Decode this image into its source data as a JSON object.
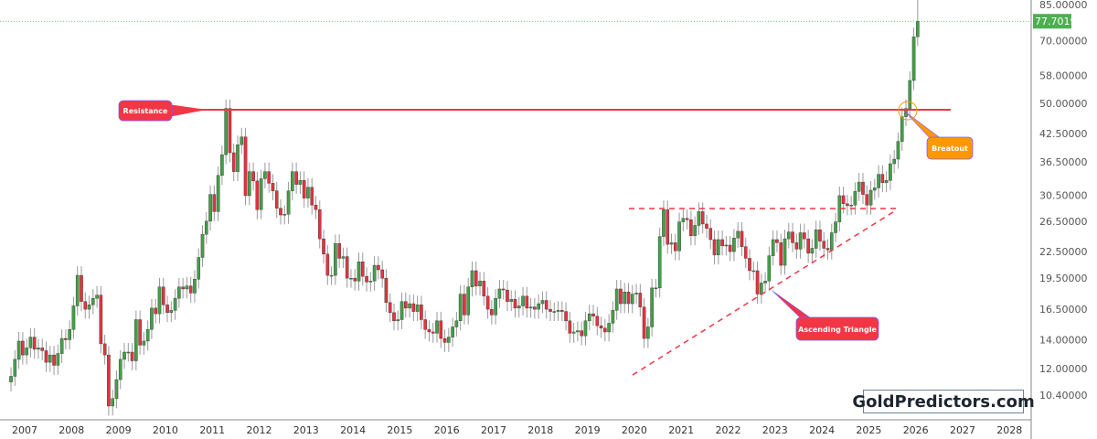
{
  "chart_data": {
    "type": "candlestick",
    "title": "",
    "xlabel": "",
    "ylabel": "",
    "y_scale": "log",
    "ylim": [
      9.5,
      88
    ],
    "grid": false,
    "y_ticks": [
      "85.00000",
      "70.00000",
      "58.00000",
      "50.00000",
      "42.50000",
      "36.50000",
      "30.50000",
      "26.50000",
      "22.50000",
      "19.50000",
      "16.50000",
      "14.00000",
      "12.00000",
      "10.40000"
    ],
    "x_ticks": [
      "2007",
      "2008",
      "2009",
      "2010",
      "2011",
      "2012",
      "2013",
      "2014",
      "2015",
      "2016",
      "2017",
      "2018",
      "2019",
      "2020",
      "2021",
      "2022",
      "2023",
      "2024",
      "2025",
      "2026",
      "2027",
      "2028"
    ],
    "last_price": "77.70190",
    "last_price_value": 77.7019,
    "start": "2006-09",
    "interval": "monthly",
    "closes": [
      11.5,
      12.6,
      13.9,
      12.9,
      13.4,
      14.2,
      13.3,
      13.4,
      13.2,
      12.4,
      12.9,
      12.2,
      13.0,
      14.1,
      14.0,
      14.8,
      16.8,
      19.8,
      17.2,
      16.5,
      16.9,
      17.5,
      17.8,
      13.7,
      12.9,
      9.8,
      10.2,
      11.3,
      12.6,
      13.1,
      13.1,
      12.5,
      15.6,
      13.6,
      13.9,
      14.8,
      16.6,
      16.1,
      18.6,
      16.9,
      16.2,
      16.4,
      17.5,
      18.6,
      18.4,
      18.7,
      18.0,
      19.4,
      21.8,
      24.7,
      26.5,
      30.6,
      27.9,
      33.9,
      37.9,
      48.6,
      38.3,
      34.6,
      40.0,
      41.7,
      30.4,
      34.6,
      32.9,
      28.2,
      33.3,
      34.6,
      32.5,
      31.2,
      28.4,
      27.4,
      27.5,
      31.2,
      34.6,
      32.3,
      33.0,
      30.0,
      31.8,
      28.9,
      28.2,
      24.1,
      22.2,
      19.8,
      19.8,
      23.5,
      21.7,
      21.9,
      19.5,
      19.5,
      19.2,
      21.3,
      19.7,
      19.1,
      19.2,
      20.9,
      20.4,
      19.5,
      17.1,
      16.2,
      15.5,
      15.6,
      17.2,
      16.6,
      17.0,
      16.3,
      16.9,
      15.6,
      14.8,
      14.6,
      14.5,
      15.5,
      14.1,
      13.8,
      14.2,
      15.0,
      15.5,
      17.9,
      16.0,
      18.6,
      20.3,
      18.7,
      19.2,
      17.7,
      16.5,
      16.0,
      17.5,
      18.4,
      18.3,
      17.2,
      17.4,
      16.6,
      16.8,
      17.7,
      16.6,
      16.7,
      16.5,
      17.0,
      17.3,
      16.5,
      16.3,
      16.3,
      16.4,
      16.3,
      15.5,
      14.5,
      14.6,
      14.7,
      14.3,
      15.5,
      16.1,
      15.9,
      15.1,
      14.9,
      14.6,
      15.3,
      16.4,
      18.4,
      17.0,
      18.1,
      17.0,
      17.9,
      18.0,
      16.7,
      14.1,
      15.0,
      18.5,
      18.5,
      24.4,
      28.2,
      23.4,
      23.6,
      22.6,
      26.4,
      26.9,
      26.7,
      24.5,
      25.9,
      27.9,
      26.1,
      25.5,
      24.0,
      22.1,
      24.0,
      23.2,
      23.3,
      22.5,
      24.2,
      25.1,
      23.1,
      21.7,
      20.3,
      20.3,
      17.9,
      19.0,
      19.2,
      22.0,
      24.0,
      23.6,
      20.9,
      24.1,
      25.0,
      23.6,
      22.8,
      24.9,
      24.1,
      22.3,
      22.9,
      25.3,
      23.8,
      22.9,
      22.7,
      24.9,
      26.4,
      30.4,
      29.1,
      28.8,
      28.9,
      31.1,
      32.7,
      30.6,
      28.9,
      31.3,
      31.7,
      34.1,
      32.6,
      33.0,
      36.1,
      37.0,
      40.7,
      46.5,
      48.6,
      56.5,
      71.5,
      77.7
    ],
    "annotations": [
      {
        "text": "Resistance",
        "level": 49.0,
        "color": "#f23645"
      },
      {
        "text": "Ascending Triangle",
        "color": "#f23645"
      },
      {
        "text": "Breatout",
        "color": "#ff9800"
      }
    ],
    "colors": {
      "up": "#43a047",
      "down": "#e5323f",
      "resistance": "#f23645",
      "breakout": "#ff9800",
      "price_tag": "#4caf50"
    }
  },
  "watermark": "GoldPredictors.com"
}
